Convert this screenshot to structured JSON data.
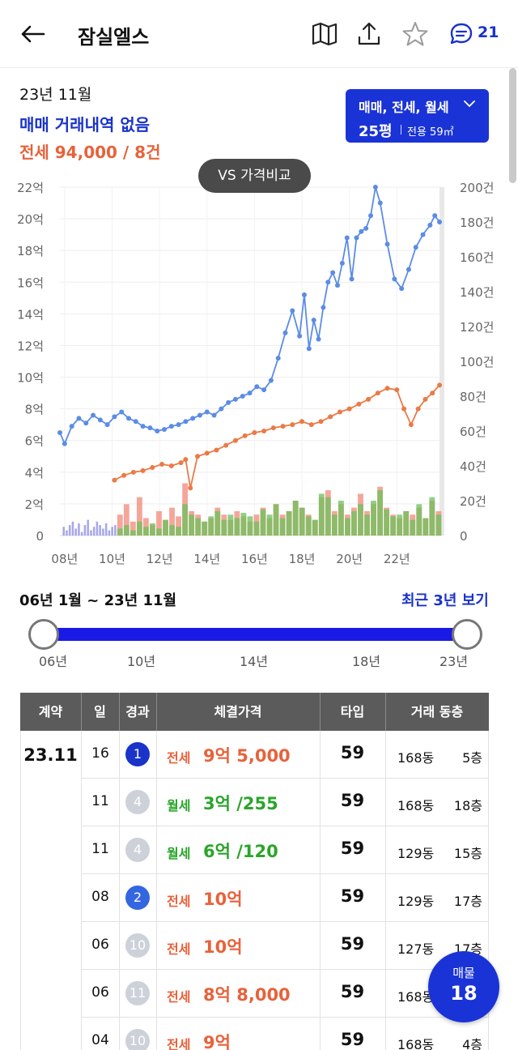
{
  "header": {
    "title": "잠실엘스",
    "icons": [
      "back-arrow-icon",
      "map-icon",
      "share-icon",
      "star-icon",
      "chat-icon"
    ],
    "chat_count": "21"
  },
  "summary": {
    "month": "23년 11월",
    "sale_status": "매매 거래내역 없음",
    "jeonse_summary": "전세 94,000 / 8건",
    "type_filter": {
      "deal_types": "매매, 전세, 월세",
      "pyeong": "25평",
      "area": "전용 59㎡"
    },
    "vs_button": "VS 가격비교"
  },
  "chart_data": {
    "type": "line",
    "x_tick_labels": [
      "08년",
      "10년",
      "12년",
      "14년",
      "16년",
      "18년",
      "20년",
      "22년"
    ],
    "y_left_tick_labels": [
      "0",
      "2억",
      "4억",
      "6억",
      "8억",
      "10억",
      "12억",
      "14억",
      "16억",
      "18억",
      "20억",
      "22억"
    ],
    "y_right_tick_labels": [
      "0",
      "20건",
      "40건",
      "60건",
      "80건",
      "100건",
      "120건",
      "140건",
      "160건",
      "180건",
      "200건"
    ],
    "y_left_range": [
      0,
      22
    ],
    "y_right_range": [
      0,
      200
    ],
    "x_range": [
      2007.8,
      2023.9
    ],
    "series": [
      {
        "color": "#5b8ce6",
        "x": [
          2007.8,
          2008.0,
          2008.3,
          2008.6,
          2008.9,
          2009.2,
          2009.5,
          2009.8,
          2010.1,
          2010.4,
          2010.7,
          2011.0,
          2011.3,
          2011.6,
          2011.9,
          2012.2,
          2012.5,
          2012.8,
          2013.1,
          2013.4,
          2013.7,
          2014.0,
          2014.3,
          2014.6,
          2014.9,
          2015.2,
          2015.5,
          2015.8,
          2016.1,
          2016.4,
          2016.7,
          2017.0,
          2017.3,
          2017.6,
          2017.9,
          2018.1,
          2018.3,
          2018.5,
          2018.7,
          2018.9,
          2019.1,
          2019.3,
          2019.5,
          2019.7,
          2019.9,
          2020.1,
          2020.3,
          2020.5,
          2020.7,
          2020.9,
          2021.1,
          2021.3,
          2021.6,
          2021.9,
          2022.2,
          2022.5,
          2022.8,
          2023.1,
          2023.4,
          2023.6,
          2023.8
        ],
        "values": [
          6.5,
          5.8,
          6.9,
          7.4,
          7.1,
          7.6,
          7.3,
          7.0,
          7.5,
          7.8,
          7.4,
          7.2,
          6.9,
          6.8,
          6.6,
          6.7,
          6.9,
          7.0,
          7.2,
          7.4,
          7.6,
          7.8,
          7.6,
          8.0,
          8.4,
          8.6,
          8.8,
          9.0,
          9.4,
          9.2,
          9.8,
          11.2,
          12.8,
          14.2,
          12.6,
          15.2,
          11.8,
          13.6,
          12.4,
          14.4,
          16.0,
          16.6,
          15.8,
          17.2,
          18.8,
          16.2,
          18.8,
          19.2,
          19.4,
          20.2,
          22.0,
          21.0,
          18.4,
          16.2,
          15.6,
          16.8,
          18.2,
          19.0,
          19.6,
          20.2,
          19.8
        ]
      },
      {
        "color": "#ea7a46",
        "x": [
          2010.1,
          2010.5,
          2010.9,
          2011.3,
          2011.7,
          2012.1,
          2012.5,
          2012.9,
          2013.1,
          2013.3,
          2013.6,
          2014.0,
          2014.4,
          2014.8,
          2015.2,
          2015.6,
          2016.0,
          2016.4,
          2016.8,
          2017.2,
          2017.6,
          2018.0,
          2018.4,
          2018.8,
          2019.2,
          2019.6,
          2020.0,
          2020.4,
          2020.8,
          2021.2,
          2021.6,
          2022.0,
          2022.3,
          2022.6,
          2022.9,
          2023.2,
          2023.5,
          2023.8
        ],
        "values": [
          3.5,
          3.8,
          4.0,
          4.1,
          4.3,
          4.5,
          4.4,
          4.6,
          4.8,
          3.0,
          5.0,
          5.2,
          5.4,
          5.7,
          6.0,
          6.3,
          6.5,
          6.6,
          6.8,
          6.9,
          7.0,
          7.2,
          7.0,
          7.2,
          7.5,
          7.8,
          8.0,
          8.3,
          8.6,
          9.0,
          9.3,
          9.2,
          8.0,
          7.0,
          8.0,
          8.6,
          9.0,
          9.5
        ]
      }
    ],
    "bar_series": [
      {
        "color": "#8a8ae6",
        "x_range": [
          2007.9,
          2010.2
        ],
        "values": [
          5,
          3,
          6,
          8,
          4,
          7,
          2,
          6,
          9,
          3,
          5,
          8,
          6,
          4,
          7,
          3,
          5,
          6
        ]
      },
      {
        "color": "#f08878",
        "x_range": [
          2010.2,
          2023.9
        ],
        "values": [
          12,
          18,
          8,
          22,
          10,
          6,
          14,
          9,
          16,
          11,
          30,
          14,
          12,
          8,
          10,
          16,
          12,
          9,
          14,
          11,
          8,
          12,
          16,
          10,
          18,
          12,
          14,
          20,
          16,
          12,
          9,
          22,
          26,
          14,
          18,
          12,
          16,
          24,
          14,
          18,
          28,
          16,
          12,
          10,
          14,
          12,
          16,
          10,
          20,
          14
        ]
      },
      {
        "color": "#6cc05a",
        "x_range": [
          2010.2,
          2023.9
        ],
        "values": [
          4,
          6,
          3,
          8,
          5,
          7,
          4,
          9,
          6,
          5,
          18,
          12,
          10,
          8,
          11,
          14,
          9,
          12,
          10,
          13,
          11,
          8,
          15,
          12,
          18,
          10,
          14,
          20,
          16,
          11,
          9,
          24,
          22,
          12,
          20,
          10,
          14,
          18,
          12,
          20,
          26,
          15,
          11,
          12,
          14,
          9,
          18,
          10,
          22,
          12
        ]
      }
    ],
    "grid": true
  },
  "range": {
    "label": "06년 1월 ~ 23년 11월",
    "recent_button": "최근 3년 보기",
    "slider_ticks": [
      "06년",
      "10년",
      "14년",
      "18년",
      "23년"
    ],
    "slider_start": 0.0,
    "slider_end": 1.0
  },
  "table": {
    "headers": [
      "계약",
      "일",
      "경과",
      "체결가격",
      "타입",
      "거래 동층"
    ],
    "month": "23.11",
    "rows": [
      {
        "day": "16",
        "badge": "1",
        "badge_color": "#1a33c9",
        "kind": "전세",
        "kind_class": "k-jeonse",
        "price": "9억 5,000",
        "type": "59",
        "dong": "168동",
        "floor": "5층"
      },
      {
        "day": "11",
        "badge": "4",
        "badge_color": "#cdd1d9",
        "kind": "월세",
        "kind_class": "k-wolse",
        "price": "3억 /255",
        "type": "59",
        "dong": "168동",
        "floor": "18층"
      },
      {
        "day": "11",
        "badge": "4",
        "badge_color": "#cdd1d9",
        "kind": "월세",
        "kind_class": "k-wolse",
        "price": "6억 /120",
        "type": "59",
        "dong": "129동",
        "floor": "15층"
      },
      {
        "day": "08",
        "badge": "2",
        "badge_color": "#3466e0",
        "kind": "전세",
        "kind_class": "k-jeonse",
        "price": "10억",
        "type": "59",
        "dong": "129동",
        "floor": "17층"
      },
      {
        "day": "06",
        "badge": "10",
        "badge_color": "#cdd1d9",
        "kind": "전세",
        "kind_class": "k-jeonse",
        "price": "10억",
        "type": "59",
        "dong": "127동",
        "floor": "17층"
      },
      {
        "day": "06",
        "badge": "11",
        "badge_color": "#cdd1d9",
        "kind": "전세",
        "kind_class": "k-jeonse",
        "price": "8억 8,000",
        "type": "59",
        "dong": "168동",
        "floor": ""
      },
      {
        "day": "04",
        "badge": "10",
        "badge_color": "#cdd1d9",
        "kind": "전세",
        "kind_class": "k-jeonse",
        "price": "9억",
        "type": "59",
        "dong": "168동",
        "floor": "4층"
      }
    ]
  },
  "float_button": {
    "label": "매물",
    "count": "18"
  }
}
